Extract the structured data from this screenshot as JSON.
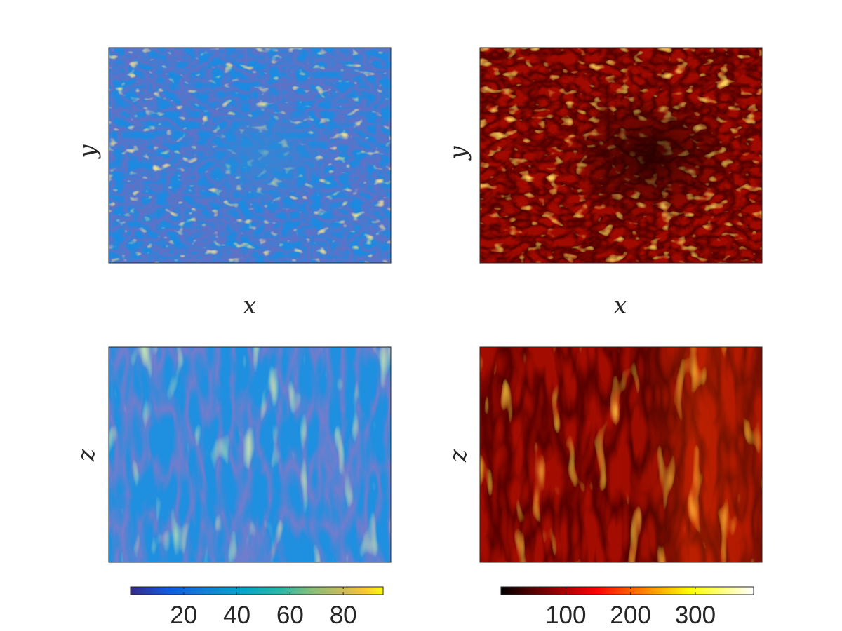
{
  "chart_data": [
    {
      "type": "heatmap",
      "panel": "top-left",
      "xlabel": "x",
      "ylabel": "y",
      "colormap": "parula",
      "clim": [
        0,
        95
      ],
      "grid": false
    },
    {
      "type": "heatmap",
      "panel": "top-right",
      "xlabel": "x",
      "ylabel": "y",
      "colormap": "hot",
      "clim": [
        0,
        390
      ],
      "grid": false
    },
    {
      "type": "heatmap",
      "panel": "bottom-left",
      "xlabel": "",
      "ylabel": "z",
      "colormap": "parula",
      "clim": [
        0,
        95
      ],
      "grid": false
    },
    {
      "type": "heatmap",
      "panel": "bottom-right",
      "xlabel": "",
      "ylabel": "z",
      "colormap": "hot",
      "clim": [
        0,
        390
      ],
      "grid": false
    }
  ],
  "colorbars": [
    {
      "colormap": "parula",
      "placement": "bottom-left",
      "range": [
        0,
        95
      ],
      "ticks": [
        20,
        40,
        60,
        80
      ],
      "tick_labels": [
        "20",
        "40",
        "60",
        "80"
      ]
    },
    {
      "colormap": "hot",
      "placement": "bottom-right",
      "range": [
        0,
        390
      ],
      "ticks": [
        100,
        200,
        300
      ],
      "tick_labels": [
        "100",
        "200",
        "300"
      ]
    }
  ]
}
